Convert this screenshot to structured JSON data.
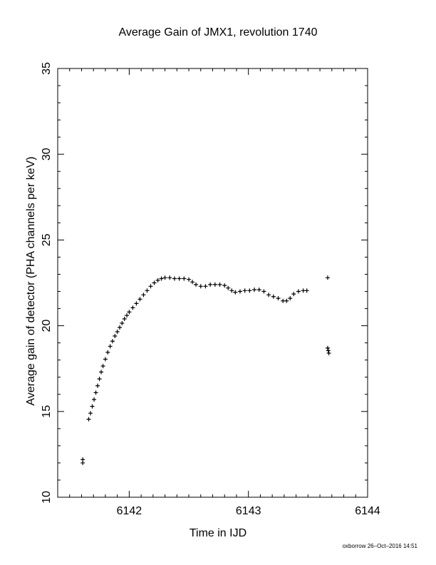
{
  "chart_data": {
    "type": "scatter",
    "title": "Average Gain of JMX1, revolution 1740",
    "xlabel": "Time in IJD",
    "ylabel": "Average gain of detector (PHA channels per keV)",
    "xlim": [
      6141.4,
      6144.0
    ],
    "ylim": [
      10,
      35
    ],
    "xticks": [
      6142,
      6143,
      6144
    ],
    "yticks": [
      10,
      15,
      20,
      25,
      30,
      35
    ],
    "marker": "+",
    "grid": false,
    "points": [
      [
        6141.61,
        12.0
      ],
      [
        6141.61,
        12.2
      ],
      [
        6141.66,
        14.55
      ],
      [
        6141.675,
        14.9
      ],
      [
        6141.69,
        15.3
      ],
      [
        6141.705,
        15.7
      ],
      [
        6141.72,
        16.1
      ],
      [
        6141.735,
        16.5
      ],
      [
        6141.75,
        16.9
      ],
      [
        6141.765,
        17.3
      ],
      [
        6141.78,
        17.65
      ],
      [
        6141.8,
        18.05
      ],
      [
        6141.82,
        18.45
      ],
      [
        6141.84,
        18.8
      ],
      [
        6141.86,
        19.1
      ],
      [
        6141.88,
        19.4
      ],
      [
        6141.9,
        19.65
      ],
      [
        6141.92,
        19.9
      ],
      [
        6141.94,
        20.15
      ],
      [
        6141.96,
        20.4
      ],
      [
        6141.98,
        20.6
      ],
      [
        6142.0,
        20.8
      ],
      [
        6142.03,
        21.05
      ],
      [
        6142.06,
        21.3
      ],
      [
        6142.09,
        21.55
      ],
      [
        6142.12,
        21.8
      ],
      [
        6142.15,
        22.05
      ],
      [
        6142.18,
        22.3
      ],
      [
        6142.21,
        22.5
      ],
      [
        6142.24,
        22.65
      ],
      [
        6142.27,
        22.75
      ],
      [
        6142.3,
        22.8
      ],
      [
        6142.34,
        22.8
      ],
      [
        6142.38,
        22.75
      ],
      [
        6142.42,
        22.75
      ],
      [
        6142.46,
        22.75
      ],
      [
        6142.5,
        22.7
      ],
      [
        6142.53,
        22.55
      ],
      [
        6142.56,
        22.4
      ],
      [
        6142.6,
        22.3
      ],
      [
        6142.64,
        22.3
      ],
      [
        6142.68,
        22.4
      ],
      [
        6142.72,
        22.4
      ],
      [
        6142.76,
        22.4
      ],
      [
        6142.8,
        22.35
      ],
      [
        6142.83,
        22.2
      ],
      [
        6142.86,
        22.05
      ],
      [
        6142.89,
        21.95
      ],
      [
        6142.93,
        22.0
      ],
      [
        6142.97,
        22.05
      ],
      [
        6143.01,
        22.05
      ],
      [
        6143.05,
        22.1
      ],
      [
        6143.09,
        22.1
      ],
      [
        6143.13,
        22.0
      ],
      [
        6143.17,
        21.8
      ],
      [
        6143.21,
        21.7
      ],
      [
        6143.25,
        21.6
      ],
      [
        6143.29,
        21.45
      ],
      [
        6143.32,
        21.45
      ],
      [
        6143.35,
        21.6
      ],
      [
        6143.38,
        21.85
      ],
      [
        6143.42,
        22.0
      ],
      [
        6143.46,
        22.05
      ],
      [
        6143.49,
        22.05
      ],
      [
        6143.665,
        22.8
      ],
      [
        6143.665,
        18.7
      ],
      [
        6143.67,
        18.55
      ],
      [
        6143.675,
        18.4
      ]
    ]
  },
  "footer": "oxborrow 26–Oct–2016 14:51"
}
